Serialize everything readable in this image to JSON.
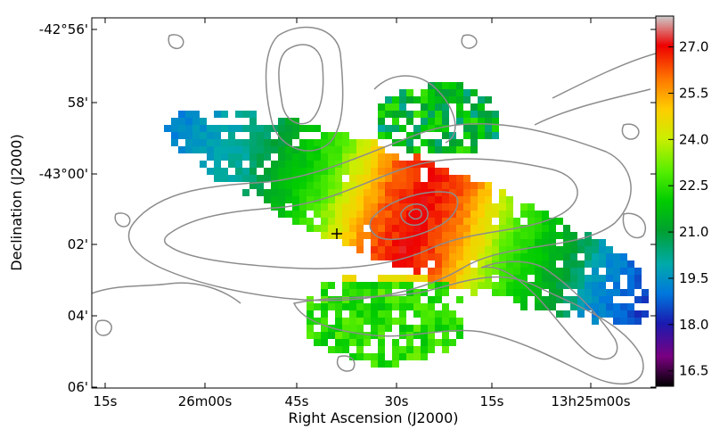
{
  "chart_data": {
    "type": "heatmap",
    "title": "",
    "xlabel": "Right Ascension (J2000)",
    "ylabel": "Declination (J2000)",
    "x_ticks": [
      "15s",
      "26m00s",
      "45s",
      "30s",
      "15s",
      "13h25m00s"
    ],
    "y_ticks": [
      "-42°56'",
      "58'",
      "-43°00'",
      "02'",
      "04'",
      "06'"
    ],
    "colorbar": {
      "ticks": [
        "16.5",
        "18.0",
        "19.5",
        "21.0",
        "22.5",
        "24.0",
        "25.5",
        "27.0"
      ],
      "range": [
        16.0,
        28.0
      ],
      "colormap": "spectral"
    },
    "grid": false,
    "annotations": [
      {
        "type": "marker",
        "symbol": "+",
        "name": "center-cross"
      }
    ],
    "contours": {
      "color": "#888888",
      "levels": 4
    }
  }
}
